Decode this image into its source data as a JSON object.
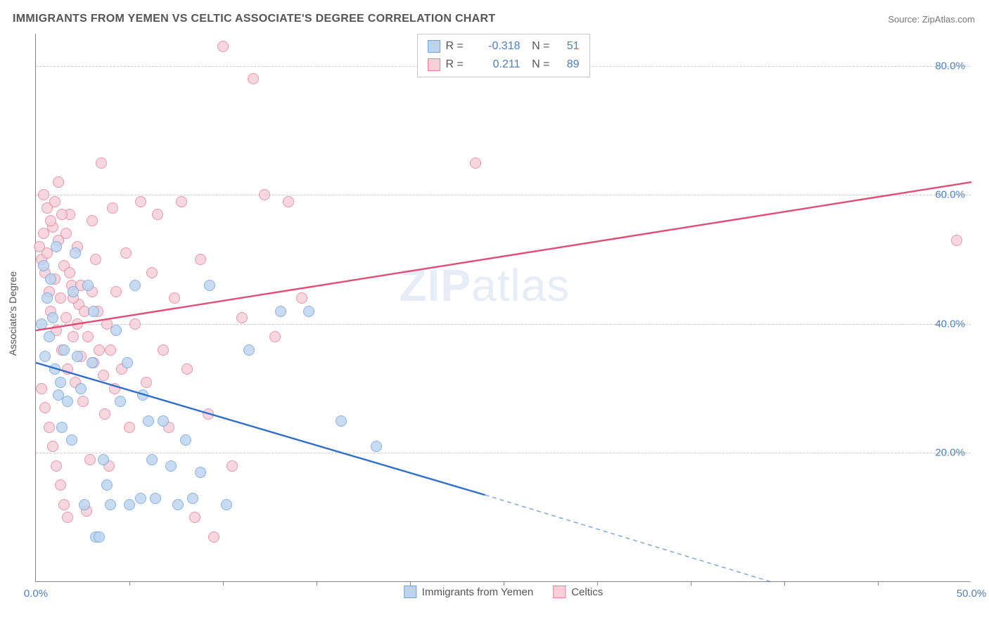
{
  "title": "IMMIGRANTS FROM YEMEN VS CELTIC ASSOCIATE'S DEGREE CORRELATION CHART",
  "source": "Source: ZipAtlas.com",
  "watermark_bold": "ZIP",
  "watermark_light": "atlas",
  "ylabel": "Associate's Degree",
  "chart": {
    "type": "scatter",
    "xlim": [
      0,
      50
    ],
    "ylim": [
      0,
      85
    ],
    "xticks": [
      0,
      50
    ],
    "xtick_labels": [
      "0.0%",
      "50.0%"
    ],
    "xtick_minor": [
      5,
      10,
      15,
      20,
      25,
      30,
      35,
      40,
      45
    ],
    "yticks": [
      20,
      40,
      60,
      80
    ],
    "ytick_labels": [
      "20.0%",
      "40.0%",
      "60.0%",
      "80.0%"
    ],
    "grid_color": "#cccccc",
    "background": "#ffffff",
    "series": [
      {
        "name": "Immigrants from Yemen",
        "color_fill": "#bcd4ef",
        "color_stroke": "#6fa3de",
        "r_value": "-0.318",
        "n_value": "51",
        "trend": {
          "x1": 0,
          "y1": 34,
          "x2": 24,
          "y2": 13.5,
          "color": "#2e6fc9",
          "width": 2.4,
          "dash_from_x": 24,
          "dash_to_x": 45,
          "dash_to_y": -5
        },
        "points": [
          [
            0.3,
            40
          ],
          [
            0.4,
            49
          ],
          [
            0.6,
            44
          ],
          [
            0.7,
            38
          ],
          [
            0.8,
            47
          ],
          [
            0.9,
            41
          ],
          [
            1.0,
            33
          ],
          [
            1.1,
            52
          ],
          [
            1.3,
            31
          ],
          [
            1.4,
            24
          ],
          [
            1.5,
            36
          ],
          [
            1.7,
            28
          ],
          [
            1.9,
            22
          ],
          [
            2.0,
            45
          ],
          [
            2.2,
            35
          ],
          [
            2.4,
            30
          ],
          [
            2.6,
            12
          ],
          [
            2.8,
            46
          ],
          [
            3.0,
            34
          ],
          [
            3.2,
            7
          ],
          [
            3.4,
            7
          ],
          [
            3.6,
            19
          ],
          [
            3.8,
            15
          ],
          [
            4.0,
            12
          ],
          [
            4.3,
            39
          ],
          [
            4.5,
            28
          ],
          [
            5.0,
            12
          ],
          [
            5.3,
            46
          ],
          [
            5.6,
            13
          ],
          [
            6.0,
            25
          ],
          [
            6.2,
            19
          ],
          [
            6.4,
            13
          ],
          [
            6.8,
            25
          ],
          [
            7.2,
            18
          ],
          [
            7.6,
            12
          ],
          [
            8.0,
            22
          ],
          [
            8.4,
            13
          ],
          [
            8.8,
            17
          ],
          [
            9.3,
            46
          ],
          [
            10.2,
            12
          ],
          [
            11.4,
            36
          ],
          [
            13.1,
            42
          ],
          [
            14.6,
            42
          ],
          [
            16.3,
            25
          ],
          [
            18.2,
            21
          ],
          [
            4.9,
            34
          ],
          [
            5.7,
            29
          ],
          [
            2.1,
            51
          ],
          [
            3.1,
            42
          ],
          [
            0.5,
            35
          ],
          [
            1.2,
            29
          ]
        ]
      },
      {
        "name": "Celtics",
        "color_fill": "#f6cfd8",
        "color_stroke": "#e77f9a",
        "r_value": "0.211",
        "n_value": "89",
        "trend": {
          "x1": 0,
          "y1": 39,
          "x2": 50,
          "y2": 62,
          "color": "#e14d77",
          "width": 2.4
        },
        "points": [
          [
            0.2,
            52
          ],
          [
            0.3,
            50
          ],
          [
            0.4,
            54
          ],
          [
            0.5,
            48
          ],
          [
            0.6,
            51
          ],
          [
            0.7,
            45
          ],
          [
            0.8,
            42
          ],
          [
            0.9,
            55
          ],
          [
            1.0,
            47
          ],
          [
            1.1,
            39
          ],
          [
            1.2,
            53
          ],
          [
            1.3,
            44
          ],
          [
            1.4,
            36
          ],
          [
            1.5,
            49
          ],
          [
            1.6,
            41
          ],
          [
            1.7,
            33
          ],
          [
            1.8,
            57
          ],
          [
            1.9,
            46
          ],
          [
            2.0,
            38
          ],
          [
            2.1,
            31
          ],
          [
            2.2,
            52
          ],
          [
            2.3,
            43
          ],
          [
            2.4,
            35
          ],
          [
            2.5,
            28
          ],
          [
            2.7,
            11
          ],
          [
            2.9,
            19
          ],
          [
            3.0,
            56
          ],
          [
            3.1,
            34
          ],
          [
            3.3,
            42
          ],
          [
            3.5,
            65
          ],
          [
            3.7,
            26
          ],
          [
            3.9,
            18
          ],
          [
            4.1,
            58
          ],
          [
            4.3,
            45
          ],
          [
            4.6,
            33
          ],
          [
            4.8,
            51
          ],
          [
            5.0,
            24
          ],
          [
            5.3,
            40
          ],
          [
            5.6,
            59
          ],
          [
            5.9,
            31
          ],
          [
            6.2,
            48
          ],
          [
            6.5,
            57
          ],
          [
            6.8,
            36
          ],
          [
            7.1,
            24
          ],
          [
            7.4,
            44
          ],
          [
            7.8,
            59
          ],
          [
            8.1,
            33
          ],
          [
            8.5,
            10
          ],
          [
            8.8,
            50
          ],
          [
            9.2,
            26
          ],
          [
            9.5,
            7
          ],
          [
            10.0,
            83
          ],
          [
            10.5,
            18
          ],
          [
            11.0,
            41
          ],
          [
            11.6,
            78
          ],
          [
            12.2,
            60
          ],
          [
            12.8,
            38
          ],
          [
            13.5,
            59
          ],
          [
            14.2,
            44
          ],
          [
            23.5,
            65
          ],
          [
            49.2,
            53
          ],
          [
            0.3,
            30
          ],
          [
            0.5,
            27
          ],
          [
            0.7,
            24
          ],
          [
            0.9,
            21
          ],
          [
            1.1,
            18
          ],
          [
            1.3,
            15
          ],
          [
            1.5,
            12
          ],
          [
            1.7,
            10
          ],
          [
            0.4,
            60
          ],
          [
            0.6,
            58
          ],
          [
            0.8,
            56
          ],
          [
            1.0,
            59
          ],
          [
            1.2,
            62
          ],
          [
            1.4,
            57
          ],
          [
            1.6,
            54
          ],
          [
            1.8,
            48
          ],
          [
            2.0,
            44
          ],
          [
            2.2,
            40
          ],
          [
            2.4,
            46
          ],
          [
            2.6,
            42
          ],
          [
            2.8,
            38
          ],
          [
            3.0,
            45
          ],
          [
            3.2,
            50
          ],
          [
            3.4,
            36
          ],
          [
            3.6,
            32
          ],
          [
            3.8,
            40
          ],
          [
            4.0,
            36
          ],
          [
            4.2,
            30
          ]
        ]
      }
    ]
  },
  "legend_top": {
    "r_label": "R =",
    "n_label": "N ="
  }
}
